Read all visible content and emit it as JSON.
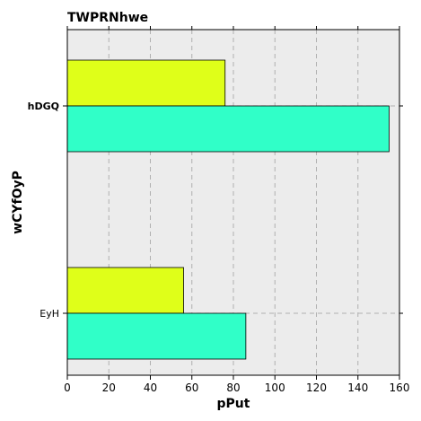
{
  "chart_data": {
    "type": "bar",
    "orientation": "horizontal",
    "title": "TWPRNhwe",
    "xlabel": "pPut",
    "ylabel": "wCYfOyP",
    "categories": [
      "hDGQ",
      "EyH"
    ],
    "series": [
      {
        "values": [
          76,
          56
        ],
        "color": "#dfff19"
      },
      {
        "values": [
          155,
          86
        ],
        "color": "#30ffc8"
      }
    ],
    "xlim": [
      0,
      160
    ],
    "xticks": [
      0,
      20,
      40,
      60,
      80,
      100,
      120,
      140,
      160
    ],
    "grid": true,
    "background": "#ececec"
  }
}
